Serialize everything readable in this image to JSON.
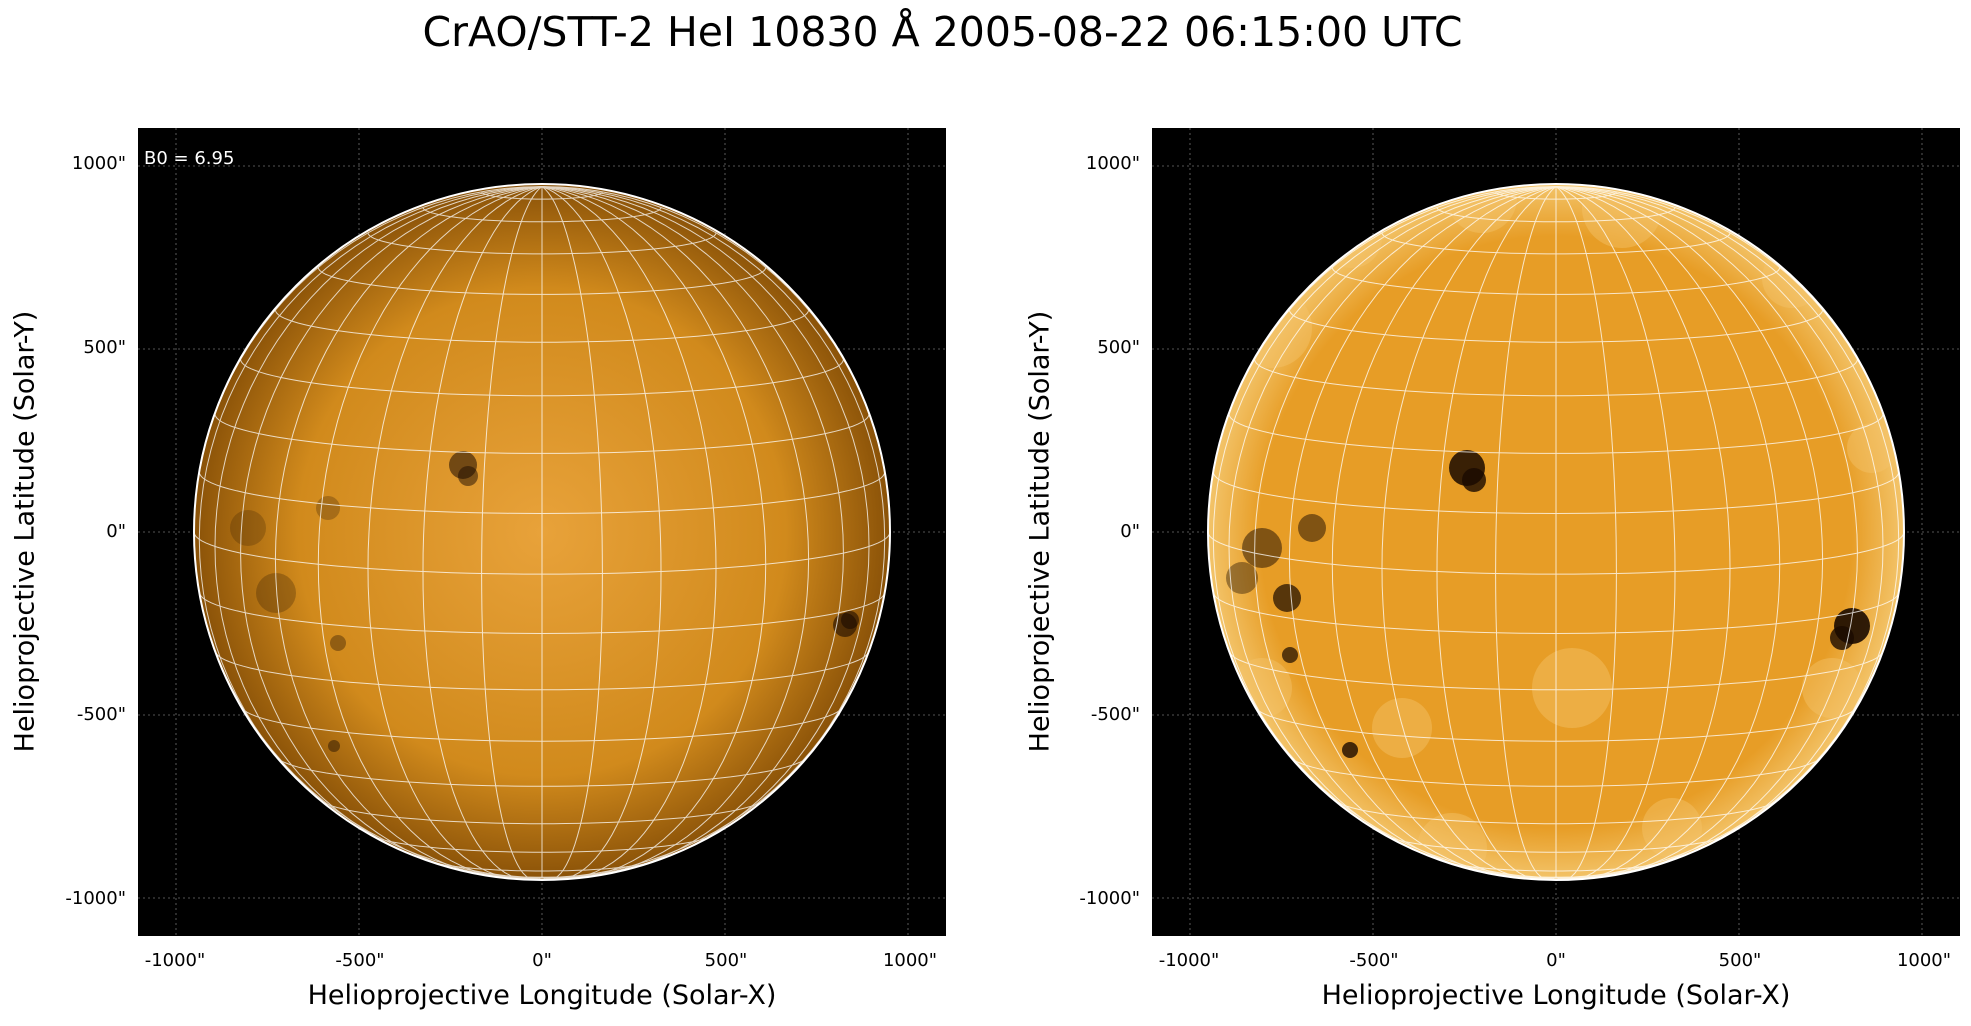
{
  "title": "CrAO/STT-2 HeI 10830 Å 2005-08-22 06:15:00 UTC",
  "annotation": "B0 = 6.95",
  "panels": [
    {
      "name": "left",
      "xlabel": "Helioprojective Longitude (Solar-X)",
      "ylabel": "Helioprojective Latitude (Solar-Y)",
      "xticks": [
        "-1000\"",
        "-500\"",
        "0\"",
        "500\"",
        "1000\""
      ],
      "yticks": [
        "1000\"",
        "500\"",
        "0\"",
        "-500\"",
        "-1000\""
      ],
      "style": "smooth"
    },
    {
      "name": "right",
      "xlabel": "Helioprojective Longitude (Solar-X)",
      "ylabel": "Helioprojective Latitude (Solar-Y)",
      "xticks": [
        "-1000\"",
        "-500\"",
        "0\"",
        "500\"",
        "1000\""
      ],
      "yticks": [
        "1000\"",
        "500\"",
        "0\"",
        "-500\"",
        "-1000\""
      ],
      "style": "enhanced"
    }
  ],
  "colors": {
    "background": "#000000",
    "disk_center": "#e8a23a",
    "disk_mid": "#d18a1c",
    "disk_edge": "#8a5208",
    "enhanced_light": "#f3c46a",
    "enhanced_mid": "#e79d26",
    "grid": "#ffffff"
  }
}
